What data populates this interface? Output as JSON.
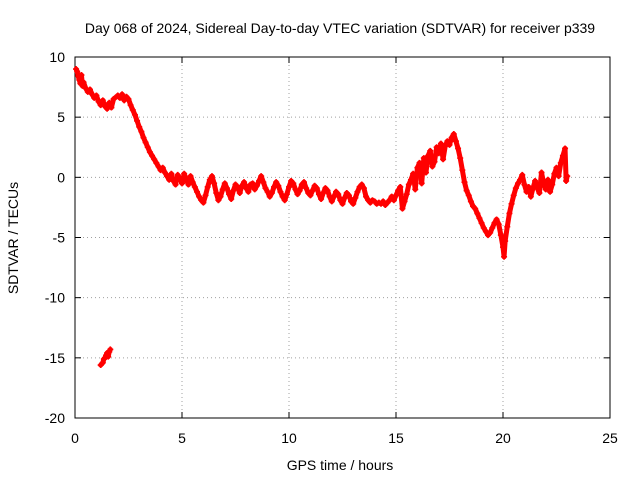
{
  "chart_data": {
    "type": "scatter",
    "title": "Day 068 of 2024, Sidereal Day-to-day VTEC variation (SDTVAR) for receiver p339",
    "xlabel": "GPS time / hours",
    "ylabel": "SDTVAR / TECUs",
    "xlim": [
      0,
      25
    ],
    "ylim": [
      -20,
      10
    ],
    "xticks": [
      0,
      5,
      10,
      15,
      20,
      25
    ],
    "yticks": [
      -20,
      -15,
      -10,
      -5,
      0,
      5,
      10
    ],
    "grid": true,
    "marker": "+",
    "color": "#ff0000",
    "series": [
      {
        "name": "SDTVAR",
        "points": [
          [
            0.05,
            9.0
          ],
          [
            0.1,
            8.8
          ],
          [
            0.15,
            8.4
          ],
          [
            0.2,
            8.1
          ],
          [
            0.25,
            7.8
          ],
          [
            0.3,
            8.5
          ],
          [
            0.35,
            7.6
          ],
          [
            0.4,
            7.9
          ],
          [
            0.5,
            7.4
          ],
          [
            0.6,
            7.1
          ],
          [
            0.7,
            7.3
          ],
          [
            0.8,
            6.9
          ],
          [
            0.9,
            6.6
          ],
          [
            1.0,
            6.8
          ],
          [
            1.1,
            6.3
          ],
          [
            1.2,
            6.0
          ],
          [
            1.3,
            6.4
          ],
          [
            1.4,
            5.9
          ],
          [
            1.5,
            5.7
          ],
          [
            1.6,
            6.2
          ],
          [
            1.7,
            5.8
          ],
          [
            1.8,
            6.5
          ],
          [
            2.0,
            6.8
          ],
          [
            2.1,
            6.6
          ],
          [
            2.2,
            6.9
          ],
          [
            2.3,
            6.4
          ],
          [
            2.4,
            6.7
          ],
          [
            2.5,
            6.5
          ],
          [
            2.6,
            6.0
          ],
          [
            2.7,
            5.6
          ],
          [
            2.8,
            5.2
          ],
          [
            2.9,
            4.7
          ],
          [
            3.0,
            4.2
          ],
          [
            3.1,
            3.8
          ],
          [
            3.2,
            3.3
          ],
          [
            3.3,
            2.9
          ],
          [
            3.4,
            2.5
          ],
          [
            3.5,
            2.1
          ],
          [
            3.6,
            1.8
          ],
          [
            3.7,
            1.5
          ],
          [
            3.8,
            1.2
          ],
          [
            3.9,
            0.9
          ],
          [
            4.0,
            0.6
          ],
          [
            4.1,
            0.8
          ],
          [
            4.2,
            0.4
          ],
          [
            4.3,
            0.1
          ],
          [
            4.4,
            -0.2
          ],
          [
            4.5,
            0.3
          ],
          [
            4.6,
            -0.3
          ],
          [
            4.7,
            -0.6
          ],
          [
            4.8,
            0.2
          ],
          [
            4.9,
            -0.1
          ],
          [
            5.0,
            -0.5
          ],
          [
            5.1,
            0.3
          ],
          [
            5.2,
            -0.2
          ],
          [
            5.3,
            -0.6
          ],
          [
            5.4,
            0.1
          ],
          [
            5.5,
            -0.4
          ],
          [
            5.6,
            -0.8
          ],
          [
            5.7,
            -1.2
          ],
          [
            5.8,
            -1.6
          ],
          [
            5.9,
            -1.9
          ],
          [
            6.0,
            -2.1
          ],
          [
            6.1,
            -1.5
          ],
          [
            6.2,
            -0.8
          ],
          [
            6.3,
            -0.2
          ],
          [
            6.4,
            0.1
          ],
          [
            6.5,
            -0.5
          ],
          [
            6.6,
            -1.3
          ],
          [
            6.7,
            -1.9
          ],
          [
            6.8,
            -1.6
          ],
          [
            6.9,
            -1.0
          ],
          [
            7.0,
            -0.5
          ],
          [
            7.1,
            -0.9
          ],
          [
            7.2,
            -1.4
          ],
          [
            7.3,
            -1.8
          ],
          [
            7.4,
            -1.1
          ],
          [
            7.5,
            -0.6
          ],
          [
            7.6,
            -0.8
          ],
          [
            7.7,
            -1.3
          ],
          [
            7.8,
            -0.7
          ],
          [
            7.9,
            -0.4
          ],
          [
            8.0,
            -0.9
          ],
          [
            8.1,
            -1.2
          ],
          [
            8.2,
            -0.6
          ],
          [
            8.3,
            -0.5
          ],
          [
            8.4,
            -1.0
          ],
          [
            8.5,
            -0.7
          ],
          [
            8.6,
            -0.3
          ],
          [
            8.7,
            0.1
          ],
          [
            8.8,
            -0.4
          ],
          [
            8.9,
            -0.9
          ],
          [
            9.0,
            -1.2
          ],
          [
            9.1,
            -1.6
          ],
          [
            9.2,
            -1.3
          ],
          [
            9.3,
            -0.8
          ],
          [
            9.4,
            -0.4
          ],
          [
            9.5,
            -0.7
          ],
          [
            9.6,
            -1.2
          ],
          [
            9.7,
            -1.6
          ],
          [
            9.8,
            -1.9
          ],
          [
            9.9,
            -1.4
          ],
          [
            10.0,
            -0.8
          ],
          [
            10.1,
            -0.3
          ],
          [
            10.2,
            -0.5
          ],
          [
            10.3,
            -1.0
          ],
          [
            10.4,
            -1.4
          ],
          [
            10.5,
            -1.1
          ],
          [
            10.6,
            -0.6
          ],
          [
            10.7,
            -0.4
          ],
          [
            10.8,
            -0.9
          ],
          [
            10.9,
            -1.3
          ],
          [
            11.0,
            -1.5
          ],
          [
            11.1,
            -1.1
          ],
          [
            11.2,
            -0.7
          ],
          [
            11.3,
            -0.9
          ],
          [
            11.4,
            -1.4
          ],
          [
            11.5,
            -1.8
          ],
          [
            11.6,
            -1.3
          ],
          [
            11.7,
            -0.9
          ],
          [
            11.8,
            -1.1
          ],
          [
            11.9,
            -1.6
          ],
          [
            12.0,
            -2.0
          ],
          [
            12.1,
            -1.6
          ],
          [
            12.2,
            -1.2
          ],
          [
            12.3,
            -1.4
          ],
          [
            12.4,
            -1.9
          ],
          [
            12.5,
            -2.2
          ],
          [
            12.6,
            -1.7
          ],
          [
            12.7,
            -1.3
          ],
          [
            12.8,
            -1.5
          ],
          [
            12.9,
            -2.0
          ],
          [
            13.0,
            -2.2
          ],
          [
            13.1,
            -1.7
          ],
          [
            13.2,
            -1.2
          ],
          [
            13.3,
            -0.8
          ],
          [
            13.4,
            -0.6
          ],
          [
            13.5,
            -0.9
          ],
          [
            13.6,
            -1.6
          ],
          [
            13.7,
            -1.9
          ],
          [
            13.8,
            -2.1
          ],
          [
            13.9,
            -1.9
          ],
          [
            14.0,
            -2.0
          ],
          [
            14.1,
            -2.2
          ],
          [
            14.2,
            -2.1
          ],
          [
            14.3,
            -2.2
          ],
          [
            14.4,
            -2.0
          ],
          [
            14.5,
            -2.3
          ],
          [
            14.6,
            -2.1
          ],
          [
            14.7,
            -1.9
          ],
          [
            14.8,
            -1.6
          ],
          [
            14.9,
            -1.9
          ],
          [
            15.0,
            -1.5
          ],
          [
            15.1,
            -1.1
          ],
          [
            15.2,
            -0.8
          ],
          [
            15.3,
            -2.6
          ],
          [
            15.4,
            -2.0
          ],
          [
            15.5,
            -1.4
          ],
          [
            15.6,
            -0.6
          ],
          [
            15.7,
            -0.2
          ],
          [
            15.8,
            0.3
          ],
          [
            15.9,
            -1.0
          ],
          [
            16.0,
            0.8
          ],
          [
            16.1,
            1.2
          ],
          [
            16.2,
            -0.5
          ],
          [
            16.3,
            1.6
          ],
          [
            16.4,
            0.4
          ],
          [
            16.5,
            1.8
          ],
          [
            16.6,
            2.2
          ],
          [
            16.7,
            0.9
          ],
          [
            16.8,
            1.3
          ],
          [
            16.9,
            2.5
          ],
          [
            17.0,
            2.0
          ],
          [
            17.1,
            2.8
          ],
          [
            17.2,
            1.5
          ],
          [
            17.3,
            2.6
          ],
          [
            17.4,
            3.0
          ],
          [
            17.5,
            2.7
          ],
          [
            17.6,
            3.3
          ],
          [
            17.7,
            3.6
          ],
          [
            17.8,
            3.0
          ],
          [
            17.9,
            2.4
          ],
          [
            18.0,
            1.6
          ],
          [
            18.1,
            0.6
          ],
          [
            18.2,
            -0.4
          ],
          [
            18.3,
            -1.1
          ],
          [
            18.4,
            -1.5
          ],
          [
            18.5,
            -2.0
          ],
          [
            18.6,
            -2.4
          ],
          [
            18.7,
            -2.6
          ],
          [
            18.8,
            -3.0
          ],
          [
            18.9,
            -3.4
          ],
          [
            19.0,
            -3.8
          ],
          [
            19.1,
            -4.2
          ],
          [
            19.2,
            -4.5
          ],
          [
            19.3,
            -4.8
          ],
          [
            19.4,
            -4.6
          ],
          [
            19.5,
            -4.2
          ],
          [
            19.6,
            -3.8
          ],
          [
            19.7,
            -3.5
          ],
          [
            19.8,
            -3.9
          ],
          [
            19.9,
            -4.8
          ],
          [
            20.0,
            -5.8
          ],
          [
            20.05,
            -6.6
          ],
          [
            20.1,
            -5.3
          ],
          [
            20.2,
            -4.1
          ],
          [
            20.3,
            -3.0
          ],
          [
            20.4,
            -2.2
          ],
          [
            20.5,
            -1.5
          ],
          [
            20.6,
            -0.9
          ],
          [
            20.7,
            -0.5
          ],
          [
            20.8,
            -0.2
          ],
          [
            20.9,
            0.2
          ],
          [
            21.0,
            -0.6
          ],
          [
            21.1,
            -1.2
          ],
          [
            21.2,
            -0.8
          ],
          [
            21.3,
            -1.6
          ],
          [
            21.4,
            -0.9
          ],
          [
            21.5,
            -0.3
          ],
          [
            21.6,
            -0.9
          ],
          [
            21.7,
            -1.3
          ],
          [
            21.8,
            0.4
          ],
          [
            21.9,
            -0.5
          ],
          [
            22.0,
            -1.0
          ],
          [
            22.1,
            -0.2
          ],
          [
            22.2,
            -1.2
          ],
          [
            22.3,
            -0.6
          ],
          [
            22.4,
            0.3
          ],
          [
            22.5,
            0.8
          ],
          [
            22.6,
            0.1
          ],
          [
            22.7,
            1.2
          ],
          [
            22.8,
            1.8
          ],
          [
            22.9,
            2.4
          ],
          [
            22.95,
            -0.3
          ],
          [
            23.0,
            0.1
          ],
          [
            1.2,
            -15.6
          ],
          [
            1.3,
            -15.4
          ],
          [
            1.35,
            -15.1
          ],
          [
            1.4,
            -15.0
          ],
          [
            1.45,
            -14.8
          ],
          [
            1.5,
            -14.6
          ],
          [
            1.55,
            -14.9
          ],
          [
            1.6,
            -14.5
          ],
          [
            1.65,
            -14.3
          ]
        ]
      }
    ]
  }
}
